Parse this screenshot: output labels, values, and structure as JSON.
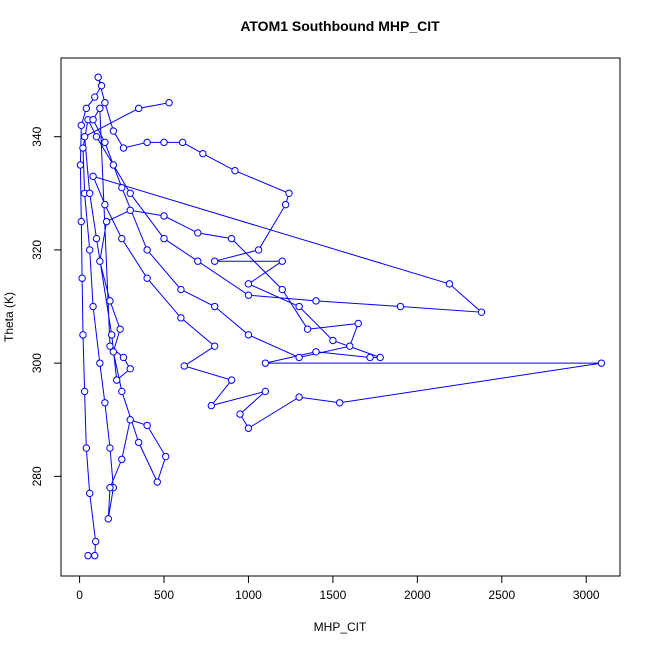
{
  "chart_data": {
    "type": "line",
    "title": "ATOM1 Southbound MHP_CIT",
    "xlabel": "MHP_CIT",
    "ylabel": "Theta (K)",
    "color": "#0000ff",
    "xlim": [
      -110,
      3200
    ],
    "ylim": [
      262.4,
      353.9
    ],
    "xticks": [
      0,
      500,
      1000,
      1500,
      2000,
      2500,
      3000
    ],
    "yticks": [
      280,
      300,
      320,
      340
    ],
    "x": [
      50,
      90,
      95,
      60,
      40,
      30,
      20,
      15,
      10,
      5,
      10,
      40,
      90,
      130,
      110,
      150,
      200,
      260,
      400,
      500,
      610,
      730,
      920,
      1240,
      1220,
      1060,
      800,
      1200,
      1000,
      1300,
      1500,
      1780,
      1720,
      1400,
      1100,
      3090,
      1540,
      1300,
      1000,
      950,
      1100,
      780,
      900,
      620,
      800,
      600,
      400,
      250,
      150,
      80,
      2190,
      2380,
      1900,
      1400,
      1000,
      700,
      500,
      300,
      200,
      100,
      50,
      20,
      30,
      60,
      80,
      120,
      150,
      180,
      200,
      170,
      180,
      250,
      300,
      400,
      510,
      460,
      350,
      250,
      200,
      240,
      180,
      120,
      160,
      300,
      500,
      700,
      900,
      1200,
      1350,
      1650,
      1600,
      1300,
      1000,
      800,
      600,
      400,
      250,
      150,
      80,
      120,
      180,
      260,
      300,
      220,
      190,
      100,
      60,
      30,
      350,
      530
    ],
    "values": [
      266,
      266,
      268.5,
      277,
      285,
      295,
      305,
      315,
      325,
      335,
      342,
      345,
      347,
      349,
      350.5,
      346,
      341,
      338,
      339,
      339,
      339,
      337,
      334,
      330,
      328,
      320,
      318,
      318,
      314,
      310,
      304,
      301,
      301,
      302,
      300,
      300,
      293,
      294,
      288.5,
      291,
      295,
      292.5,
      297,
      299.5,
      303,
      308,
      315,
      322,
      328,
      333,
      314,
      309,
      310,
      311,
      312,
      318,
      322,
      330,
      335,
      340,
      343,
      338,
      330,
      320,
      310,
      300,
      293,
      285,
      278,
      272.5,
      278,
      283,
      290,
      289,
      283.5,
      279,
      286,
      295,
      302,
      306,
      311,
      318,
      325,
      327,
      326,
      323,
      322,
      313,
      306,
      307,
      303,
      301,
      305,
      310,
      313,
      320,
      331,
      339,
      343,
      345,
      303,
      301,
      299,
      297,
      305,
      322,
      330,
      340,
      345,
      346
    ]
  }
}
